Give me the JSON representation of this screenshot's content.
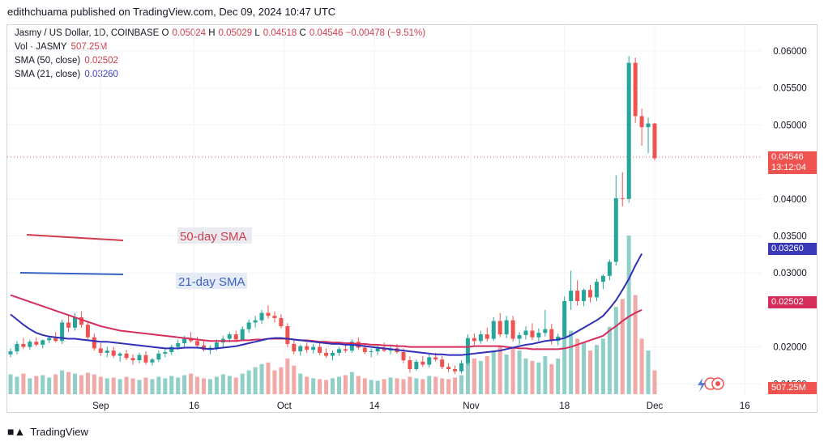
{
  "header": {
    "publisher": "edithchuama published on TradingView.com, Dec 09, 2024 10:47 UTC"
  },
  "legend": {
    "symbol": "Jasmy / US Dollar, 1D, COINBASE",
    "o_label": "O",
    "o_value": "0.05024",
    "h_label": "H",
    "h_value": "0.05029",
    "l_label": "L",
    "l_value": "0.04518",
    "c_label": "C",
    "c_value": "0.04546",
    "change": "−0.00478 (−9.51%)",
    "vol_label": "Vol · JASMY",
    "vol_value": "507.25M",
    "sma50_label": "SMA (50, close)",
    "sma50_value": "0.02502",
    "sma21_label": "SMA (21, close)",
    "sma21_value": "0.03260"
  },
  "annotations": {
    "sma50_text": "50-day SMA",
    "sma21_text": "21-day SMA"
  },
  "price_badges": {
    "last_price": "0.04546",
    "countdown": "13:12:04",
    "sma21": "0.03260",
    "sma50": "0.02502",
    "volume": "507.25M"
  },
  "footer": {
    "brand": "TradingView"
  },
  "colors": {
    "up": "#26a69a",
    "down": "#ef5350",
    "sma50": "#d62e5c",
    "sma21": "#2f2fb8",
    "vol_up": "#8fcfc8",
    "vol_down": "#f0a9a6"
  },
  "chart_data": {
    "type": "candlestick",
    "y_ticks": [
      "0.06000",
      "0.05500",
      "0.05000",
      "0.04000",
      "0.03500",
      "0.03000",
      "0.02000",
      "0.01500"
    ],
    "x_ticks": [
      "Sep",
      "16",
      "Oct",
      "14",
      "Nov",
      "18",
      "Dec",
      "16"
    ],
    "ylim": [
      0.0135,
      0.0635
    ],
    "series": [
      {
        "name": "SMA (50, close)",
        "type": "line"
      },
      {
        "name": "SMA (21, close)",
        "type": "line"
      },
      {
        "name": "Vol · JASMY",
        "type": "bar"
      }
    ],
    "candles": [
      [
        0.019,
        0.0198,
        0.0186,
        0.0194
      ],
      [
        0.0194,
        0.0208,
        0.019,
        0.0204
      ],
      [
        0.0204,
        0.0212,
        0.0197,
        0.02
      ],
      [
        0.02,
        0.021,
        0.0196,
        0.0207
      ],
      [
        0.0207,
        0.0213,
        0.0201,
        0.0203
      ],
      [
        0.0203,
        0.021,
        0.0198,
        0.0209
      ],
      [
        0.0209,
        0.0215,
        0.0205,
        0.0212
      ],
      [
        0.0212,
        0.022,
        0.0206,
        0.0208
      ],
      [
        0.0208,
        0.0237,
        0.0204,
        0.0233
      ],
      [
        0.0233,
        0.0242,
        0.022,
        0.0226
      ],
      [
        0.0226,
        0.0246,
        0.0222,
        0.024
      ],
      [
        0.024,
        0.0248,
        0.0226,
        0.023
      ],
      [
        0.023,
        0.0235,
        0.021,
        0.0213
      ],
      [
        0.0213,
        0.0218,
        0.0195,
        0.0198
      ],
      [
        0.0198,
        0.0205,
        0.0188,
        0.0192
      ],
      [
        0.0192,
        0.02,
        0.0186,
        0.0195
      ],
      [
        0.0195,
        0.02,
        0.0185,
        0.0188
      ],
      [
        0.0188,
        0.0193,
        0.018,
        0.0191
      ],
      [
        0.0191,
        0.0196,
        0.0182,
        0.0185
      ],
      [
        0.0185,
        0.019,
        0.0176,
        0.0182
      ],
      [
        0.0182,
        0.0192,
        0.0178,
        0.0189
      ],
      [
        0.0189,
        0.0194,
        0.0176,
        0.0179
      ],
      [
        0.0179,
        0.0185,
        0.0175,
        0.0183
      ],
      [
        0.0183,
        0.0195,
        0.018,
        0.0191
      ],
      [
        0.0191,
        0.0198,
        0.0186,
        0.0193
      ],
      [
        0.0193,
        0.0203,
        0.0189,
        0.02
      ],
      [
        0.02,
        0.021,
        0.0196,
        0.0205
      ],
      [
        0.0205,
        0.0215,
        0.02,
        0.0212
      ],
      [
        0.0212,
        0.022,
        0.0206,
        0.0208
      ],
      [
        0.0208,
        0.0214,
        0.0199,
        0.0202
      ],
      [
        0.0202,
        0.0208,
        0.0194,
        0.0196
      ],
      [
        0.0196,
        0.0202,
        0.019,
        0.0199
      ],
      [
        0.0199,
        0.021,
        0.0195,
        0.0206
      ],
      [
        0.0206,
        0.0215,
        0.02,
        0.0211
      ],
      [
        0.0211,
        0.022,
        0.0206,
        0.0217
      ],
      [
        0.0217,
        0.0222,
        0.0207,
        0.021
      ],
      [
        0.021,
        0.0228,
        0.0208,
        0.0224
      ],
      [
        0.0224,
        0.0237,
        0.0219,
        0.0233
      ],
      [
        0.0233,
        0.0242,
        0.0226,
        0.0236
      ],
      [
        0.0236,
        0.025,
        0.0231,
        0.0246
      ],
      [
        0.0246,
        0.0256,
        0.0238,
        0.0242
      ],
      [
        0.0242,
        0.0248,
        0.0233,
        0.0239
      ],
      [
        0.0239,
        0.0244,
        0.0225,
        0.0228
      ],
      [
        0.0228,
        0.0232,
        0.02,
        0.0204
      ],
      [
        0.0204,
        0.021,
        0.019,
        0.0194
      ],
      [
        0.0194,
        0.0203,
        0.0188,
        0.0201
      ],
      [
        0.0201,
        0.0206,
        0.0192,
        0.0196
      ],
      [
        0.0196,
        0.0204,
        0.0191,
        0.02
      ],
      [
        0.02,
        0.0205,
        0.0189,
        0.0192
      ],
      [
        0.0192,
        0.0198,
        0.0185,
        0.0188
      ],
      [
        0.0188,
        0.0195,
        0.0182,
        0.0192
      ],
      [
        0.0192,
        0.02,
        0.0188,
        0.0197
      ],
      [
        0.0197,
        0.0203,
        0.0192,
        0.0195
      ],
      [
        0.0195,
        0.021,
        0.0192,
        0.0207
      ],
      [
        0.0207,
        0.0213,
        0.0196,
        0.0199
      ],
      [
        0.0199,
        0.0204,
        0.019,
        0.0193
      ],
      [
        0.0193,
        0.0198,
        0.0186,
        0.0194
      ],
      [
        0.0194,
        0.0202,
        0.0189,
        0.0199
      ],
      [
        0.0199,
        0.0206,
        0.0193,
        0.0195
      ],
      [
        0.0195,
        0.0203,
        0.019,
        0.0198
      ],
      [
        0.0198,
        0.0204,
        0.0191,
        0.0193
      ],
      [
        0.0193,
        0.0198,
        0.0178,
        0.0182
      ],
      [
        0.0182,
        0.0187,
        0.0165,
        0.017
      ],
      [
        0.017,
        0.0183,
        0.0168,
        0.018
      ],
      [
        0.018,
        0.0188,
        0.0173,
        0.0176
      ],
      [
        0.0176,
        0.019,
        0.0172,
        0.0186
      ],
      [
        0.0186,
        0.0192,
        0.018,
        0.0183
      ],
      [
        0.0183,
        0.0188,
        0.017,
        0.0173
      ],
      [
        0.0173,
        0.0178,
        0.0166,
        0.017
      ],
      [
        0.017,
        0.0175,
        0.0163,
        0.0167
      ],
      [
        0.0167,
        0.0182,
        0.0164,
        0.0178
      ],
      [
        0.0178,
        0.0217,
        0.0175,
        0.0212
      ],
      [
        0.0212,
        0.0218,
        0.0202,
        0.0208
      ],
      [
        0.0208,
        0.0222,
        0.0204,
        0.0217
      ],
      [
        0.0217,
        0.0226,
        0.0207,
        0.0211
      ],
      [
        0.0211,
        0.024,
        0.0208,
        0.0235
      ],
      [
        0.0235,
        0.0246,
        0.0213,
        0.0217
      ],
      [
        0.0217,
        0.0242,
        0.0212,
        0.0236
      ],
      [
        0.0236,
        0.0242,
        0.0207,
        0.0211
      ],
      [
        0.0211,
        0.022,
        0.0203,
        0.0216
      ],
      [
        0.0216,
        0.0228,
        0.021,
        0.0222
      ],
      [
        0.0222,
        0.0232,
        0.0209,
        0.0213
      ],
      [
        0.0213,
        0.0225,
        0.0208,
        0.0219
      ],
      [
        0.0219,
        0.025,
        0.0214,
        0.0224
      ],
      [
        0.0224,
        0.0231,
        0.0203,
        0.0208
      ],
      [
        0.0208,
        0.0218,
        0.0202,
        0.0214
      ],
      [
        0.0214,
        0.0268,
        0.0211,
        0.0262
      ],
      [
        0.0262,
        0.0303,
        0.025,
        0.0276
      ],
      [
        0.0276,
        0.029,
        0.0256,
        0.0262
      ],
      [
        0.0262,
        0.0279,
        0.0255,
        0.0277
      ],
      [
        0.0277,
        0.0284,
        0.026,
        0.0267
      ],
      [
        0.0267,
        0.0292,
        0.0262,
        0.0288
      ],
      [
        0.0288,
        0.0298,
        0.0278,
        0.0296
      ],
      [
        0.0296,
        0.0318,
        0.029,
        0.0315
      ],
      [
        0.0315,
        0.0432,
        0.031,
        0.0401
      ],
      [
        0.0401,
        0.0436,
        0.039,
        0.04
      ],
      [
        0.04,
        0.0593,
        0.0395,
        0.0584
      ],
      [
        0.0584,
        0.0591,
        0.0503,
        0.0512
      ],
      [
        0.0512,
        0.0522,
        0.0472,
        0.0497
      ],
      [
        0.0497,
        0.051,
        0.0462,
        0.0502
      ],
      [
        0.0502,
        0.0503,
        0.0452,
        0.0455
      ]
    ],
    "sma50": [
      0.027,
      0.0267,
      0.0264,
      0.0261,
      0.0258,
      0.0255,
      0.0252,
      0.0249,
      0.0246,
      0.0243,
      0.024,
      0.0237,
      0.0234,
      0.0231,
      0.0228,
      0.0226,
      0.0224,
      0.0222,
      0.0221,
      0.022,
      0.0219,
      0.0218,
      0.0217,
      0.0216,
      0.0215,
      0.0214,
      0.0213,
      0.0212,
      0.0211,
      0.021,
      0.0209,
      0.0208,
      0.0208,
      0.0208,
      0.0208,
      0.0208,
      0.0209,
      0.0209,
      0.021,
      0.021,
      0.0211,
      0.0211,
      0.0211,
      0.0211,
      0.021,
      0.0209,
      0.0209,
      0.0208,
      0.0207,
      0.0207,
      0.0206,
      0.0206,
      0.0205,
      0.0205,
      0.0204,
      0.0204,
      0.0203,
      0.0203,
      0.0202,
      0.0202,
      0.0201,
      0.0201,
      0.02,
      0.02,
      0.02,
      0.02,
      0.02,
      0.02,
      0.02,
      0.02,
      0.02,
      0.02,
      0.0201,
      0.0201,
      0.0201,
      0.0201,
      0.0201,
      0.02,
      0.0199,
      0.0198,
      0.0198,
      0.0197,
      0.0197,
      0.0197,
      0.0197,
      0.0197,
      0.0198,
      0.02,
      0.0203,
      0.0206,
      0.0209,
      0.0212,
      0.0215,
      0.0222,
      0.0228,
      0.0235,
      0.0241,
      0.0246,
      0.025
    ],
    "sma21": [
      0.0244,
      0.0237,
      0.023,
      0.0224,
      0.0219,
      0.0216,
      0.0214,
      0.0213,
      0.0212,
      0.0211,
      0.0211,
      0.021,
      0.0209,
      0.0208,
      0.0207,
      0.0207,
      0.0206,
      0.0205,
      0.0204,
      0.0203,
      0.0202,
      0.0201,
      0.02,
      0.0199,
      0.0198,
      0.0198,
      0.0198,
      0.0199,
      0.0199,
      0.0199,
      0.0198,
      0.0197,
      0.0198,
      0.0199,
      0.02,
      0.0201,
      0.0203,
      0.0205,
      0.0207,
      0.0209,
      0.0211,
      0.0212,
      0.0212,
      0.0211,
      0.021,
      0.0209,
      0.0208,
      0.0207,
      0.0206,
      0.0205,
      0.0204,
      0.0204,
      0.0203,
      0.0203,
      0.0202,
      0.0201,
      0.02,
      0.0199,
      0.0198,
      0.0197,
      0.0196,
      0.0195,
      0.0194,
      0.0193,
      0.0192,
      0.0191,
      0.019,
      0.019,
      0.0189,
      0.0189,
      0.0189,
      0.019,
      0.0191,
      0.0192,
      0.0193,
      0.0194,
      0.0195,
      0.0197,
      0.0199,
      0.0201,
      0.0203,
      0.0204,
      0.0206,
      0.0208,
      0.0209,
      0.021,
      0.0212,
      0.0216,
      0.0221,
      0.0226,
      0.0231,
      0.0236,
      0.0242,
      0.0252,
      0.0263,
      0.0277,
      0.0292,
      0.031,
      0.0326
    ],
    "volume": [
      0.25,
      0.22,
      0.26,
      0.2,
      0.23,
      0.24,
      0.21,
      0.25,
      0.3,
      0.28,
      0.26,
      0.24,
      0.27,
      0.25,
      0.22,
      0.2,
      0.21,
      0.19,
      0.22,
      0.2,
      0.18,
      0.21,
      0.19,
      0.22,
      0.2,
      0.23,
      0.21,
      0.24,
      0.26,
      0.22,
      0.2,
      0.19,
      0.22,
      0.25,
      0.23,
      0.21,
      0.26,
      0.3,
      0.34,
      0.38,
      0.4,
      0.3,
      0.34,
      0.45,
      0.36,
      0.26,
      0.22,
      0.2,
      0.19,
      0.18,
      0.2,
      0.22,
      0.24,
      0.28,
      0.23,
      0.2,
      0.18,
      0.17,
      0.19,
      0.21,
      0.2,
      0.19,
      0.22,
      0.2,
      0.19,
      0.23,
      0.22,
      0.2,
      0.19,
      0.21,
      0.24,
      0.4,
      0.45,
      0.42,
      0.48,
      0.55,
      0.6,
      0.5,
      0.58,
      0.55,
      0.45,
      0.42,
      0.4,
      0.48,
      0.38,
      0.45,
      1.0,
      0.8,
      0.7,
      0.65,
      0.55,
      0.62,
      0.7,
      0.85,
      1.1,
      1.2,
      2.0,
      1.25,
      0.7,
      0.55,
      0.3
    ]
  }
}
